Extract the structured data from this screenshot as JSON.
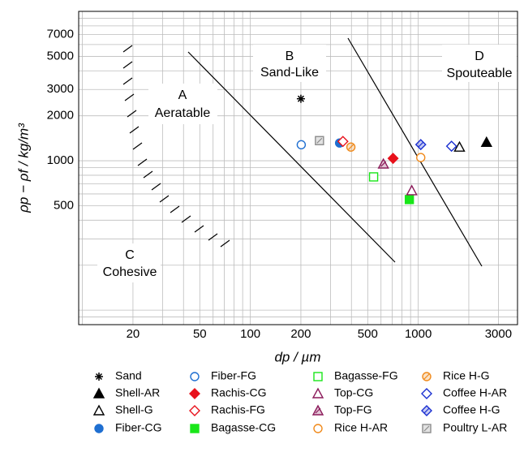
{
  "chart_data": {
    "type": "scatter",
    "xlabel": "dp / µm",
    "ylabel": "ρp − ρf / kg/m³",
    "log_x": true,
    "log_y": true,
    "grid": true,
    "xlim": [
      9.5,
      3900
    ],
    "ylim": [
      80,
      10000
    ],
    "xticks": [
      20,
      50,
      100,
      200,
      500,
      1000,
      3000
    ],
    "yticks": [
      500,
      1000,
      2000,
      3000,
      5000,
      7000
    ],
    "xgrid": [
      10,
      20,
      30,
      40,
      50,
      60,
      70,
      80,
      90,
      100,
      200,
      300,
      400,
      500,
      600,
      700,
      800,
      900,
      1000,
      2000,
      3000
    ],
    "ygrid": [
      80,
      90,
      100,
      200,
      300,
      400,
      500,
      600,
      700,
      800,
      900,
      1000,
      2000,
      3000,
      4000,
      5000,
      6000,
      7000,
      8000,
      9000,
      10000
    ],
    "regions": [
      {
        "letter": "A",
        "label": "Aeratable"
      },
      {
        "letter": "B",
        "label": "Sand-Like"
      },
      {
        "letter": "C",
        "label": "Cohesive"
      },
      {
        "letter": "D",
        "label": "Spouteable"
      }
    ],
    "legend": "bottom",
    "series": [
      {
        "name": "Sand",
        "marker": "star",
        "style": "filled",
        "color": "#000000",
        "x": [
          200
        ],
        "values": [
          2600
        ]
      },
      {
        "name": "Shell-AR",
        "marker": "triangle",
        "style": "filled",
        "color": "#000000",
        "x": [
          2550
        ],
        "values": [
          1330
        ]
      },
      {
        "name": "Shell-G",
        "marker": "triangle",
        "style": "open",
        "color": "#000000",
        "x": [
          1760
        ],
        "values": [
          1235
        ]
      },
      {
        "name": "Fiber-CG",
        "marker": "circle",
        "style": "filled",
        "color": "#1f6fd1",
        "x": [
          340
        ],
        "values": [
          1315
        ]
      },
      {
        "name": "Fiber-FG",
        "marker": "circle",
        "style": "open",
        "color": "#1f6fd1",
        "x": [
          201
        ],
        "values": [
          1280
        ]
      },
      {
        "name": "Rachis-CG",
        "marker": "diamond",
        "style": "filled",
        "color": "#e8111b",
        "x": [
          708
        ],
        "values": [
          1038
        ]
      },
      {
        "name": "Rachis-FG",
        "marker": "diamond",
        "style": "open",
        "color": "#e8111b",
        "x": [
          356
        ],
        "values": [
          1348
        ]
      },
      {
        "name": "Bagasse-CG",
        "marker": "square",
        "style": "filled",
        "color": "#19e619",
        "x": [
          885
        ],
        "values": [
          550
        ]
      },
      {
        "name": "Bagasse-FG",
        "marker": "square",
        "style": "open",
        "color": "#19e619",
        "x": [
          542
        ],
        "values": [
          780
        ]
      },
      {
        "name": "Top-CG",
        "marker": "triangle",
        "style": "open",
        "color": "#8b1a5a",
        "x": [
          915
        ],
        "values": [
          631
        ]
      },
      {
        "name": "Top-FG",
        "marker": "triangle",
        "style": "hatched",
        "color": "#8b1a5a",
        "x": [
          620
        ],
        "values": [
          951
        ]
      },
      {
        "name": "Rice H-AR",
        "marker": "circle",
        "style": "open",
        "color": "#f08a1c",
        "x": [
          1035
        ],
        "values": [
          1051
        ]
      },
      {
        "name": "Rice H-G",
        "marker": "circle",
        "style": "hatched",
        "color": "#f08a1c",
        "x": [
          397
        ],
        "values": [
          1235
        ]
      },
      {
        "name": "Coffee H-AR",
        "marker": "diamond",
        "style": "open",
        "color": "#1a2fd1",
        "x": [
          1578
        ],
        "values": [
          1251
        ]
      },
      {
        "name": "Coffee H-G",
        "marker": "diamond",
        "style": "hatched",
        "color": "#1a2fd1",
        "x": [
          1035
        ],
        "values": [
          1283
        ]
      },
      {
        "name": "Poultry L-AR",
        "marker": "square",
        "style": "hatched",
        "color": "#8c8c8c",
        "x": [
          258
        ],
        "values": [
          1364
        ]
      }
    ]
  }
}
